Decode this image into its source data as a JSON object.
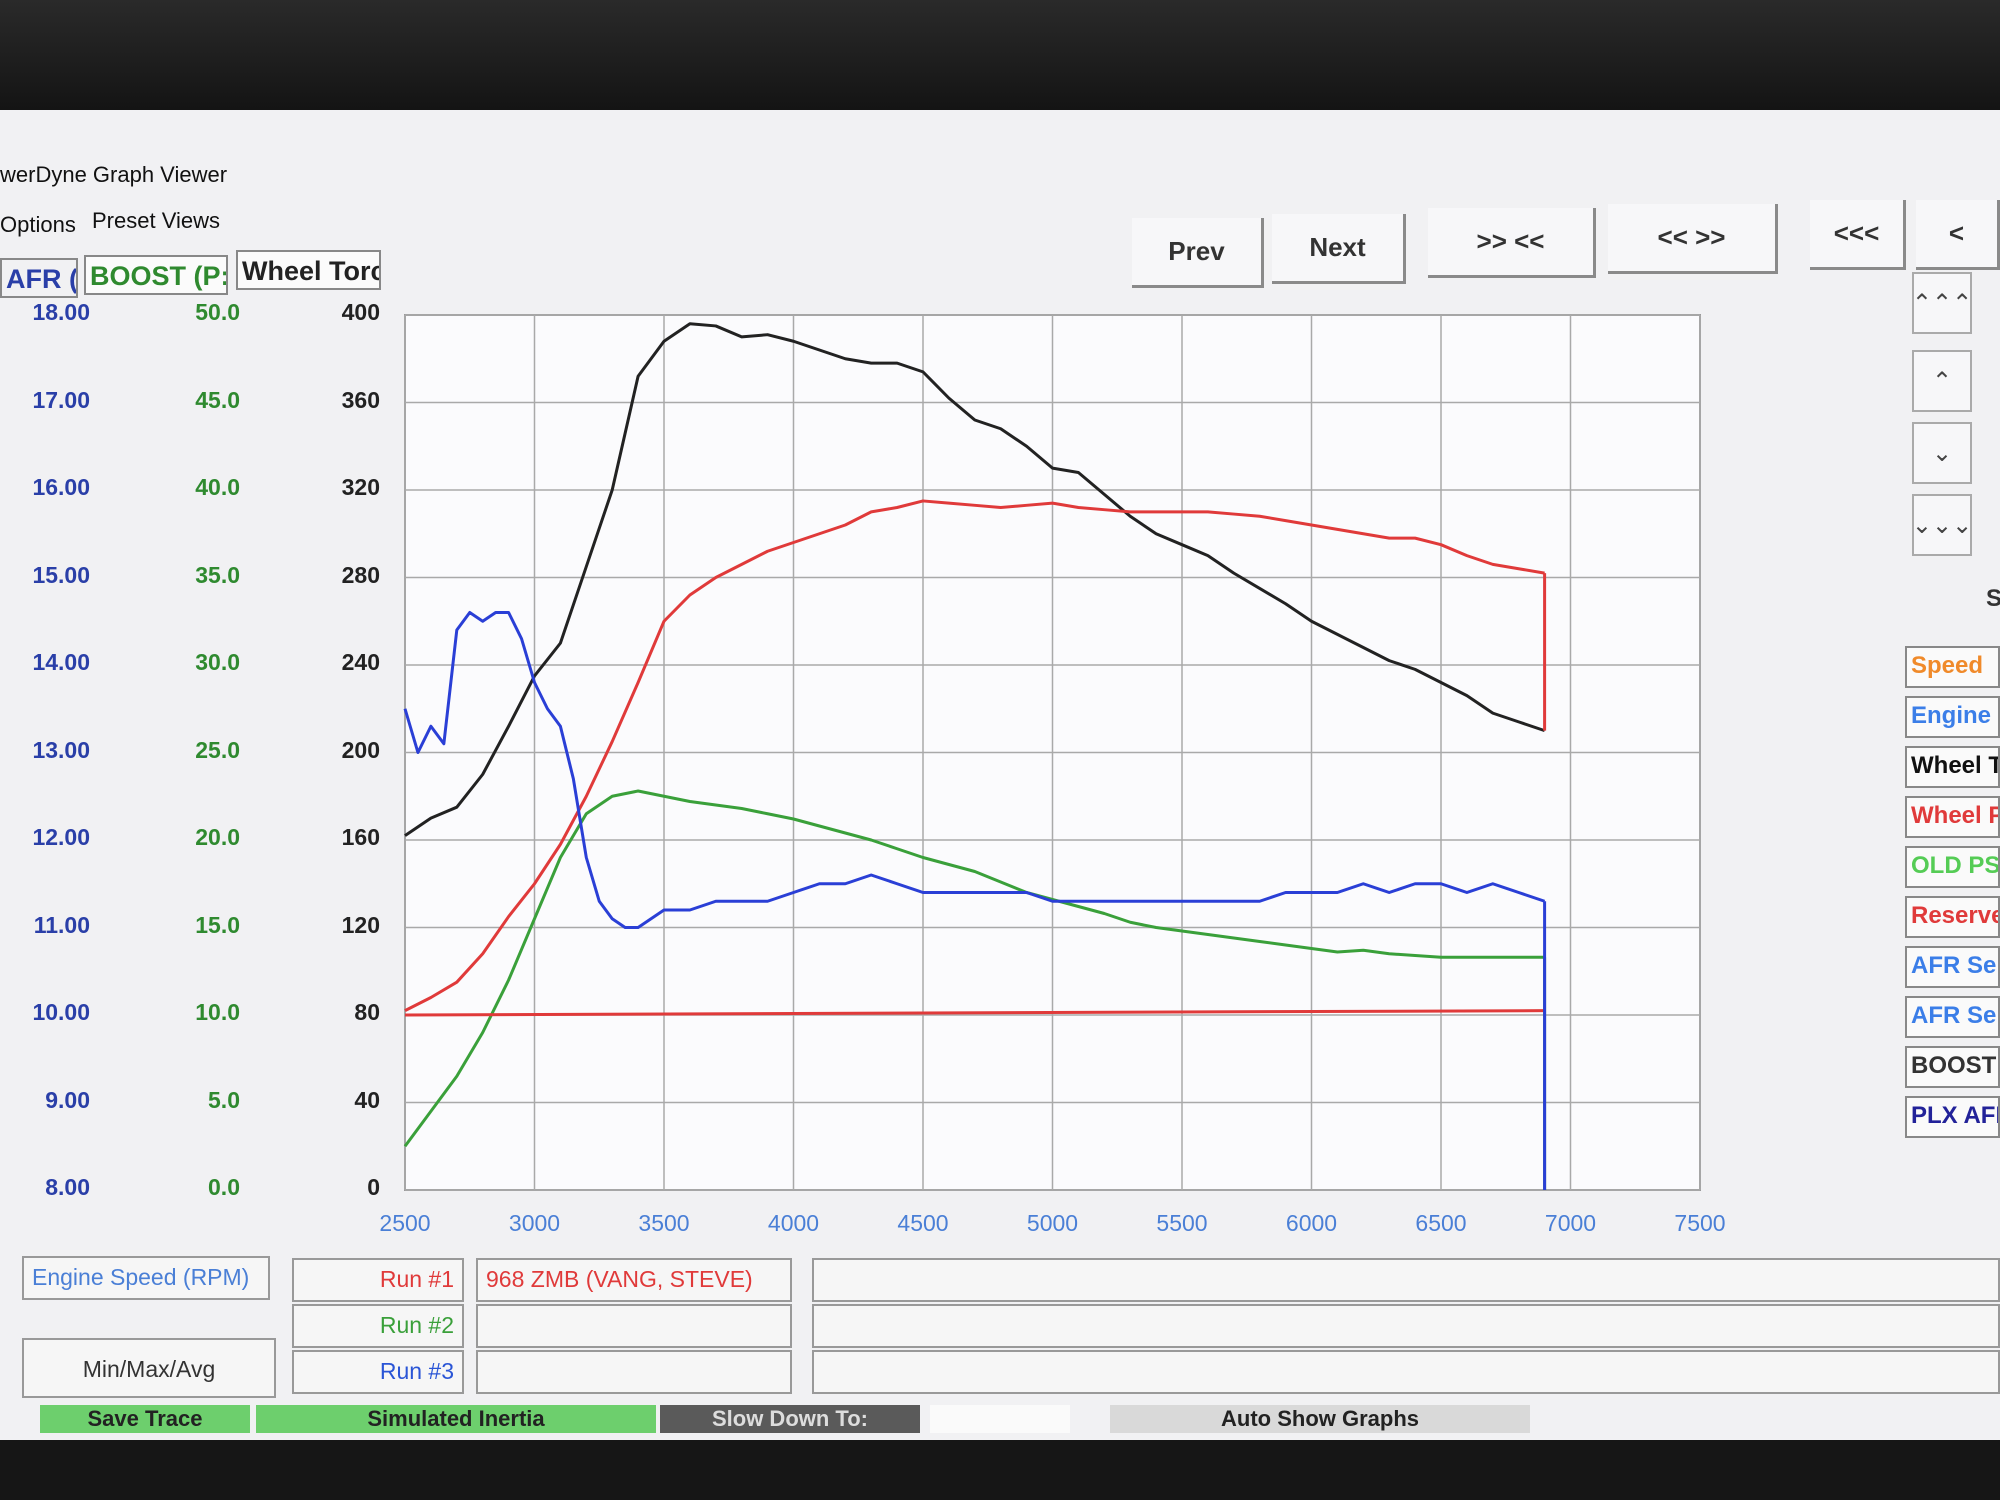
{
  "window": {
    "title": "werDyne Graph Viewer"
  },
  "menu": {
    "items": [
      "Options",
      "Preset Views"
    ]
  },
  "axis_headers": {
    "afr": "AFR (A",
    "boost": "BOOST (P:",
    "torque": "Wheel Torc"
  },
  "toolbar": {
    "prev": "Prev",
    "next": "Next",
    "zoom_in": ">> <<",
    "zoom_out": "<< >>",
    "far_left": "<<<",
    "left": "<"
  },
  "side_buttons": {
    "top": "⌃⌃⌃",
    "up": "⌃",
    "down": "⌄",
    "bottom": "⌄⌄⌄"
  },
  "side_letter": "S",
  "legend": [
    {
      "label": "Speed",
      "color": "#f08a2a"
    },
    {
      "label": "Engine",
      "color": "#3b7ee8"
    },
    {
      "label": "Wheel T",
      "color": "#111111"
    },
    {
      "label": "Wheel P",
      "color": "#e03a3a"
    },
    {
      "label": "OLD PS",
      "color": "#55cc55"
    },
    {
      "label": "Reserve",
      "color": "#e03a3a"
    },
    {
      "label": "AFR Sen",
      "color": "#3b7ee8"
    },
    {
      "label": "AFR Sen",
      "color": "#3b7ee8"
    },
    {
      "label": "BOOST",
      "color": "#333333"
    },
    {
      "label": "PLX AFR",
      "color": "#222299"
    }
  ],
  "bottom": {
    "x_axis_label": "Engine Speed (RPM)",
    "minmax_label": "Min/Max/Avg",
    "runs": [
      {
        "label": "Run #1",
        "name": "968 ZMB (VANG, STEVE)",
        "color": "#e03a3a"
      },
      {
        "label": "Run #2",
        "name": "",
        "color": "#3aa03a"
      },
      {
        "label": "Run #3",
        "name": "",
        "color": "#2a55d6"
      }
    ],
    "strip": {
      "save_trace": "Save Trace",
      "simulated_inertia": "Simulated Inertia",
      "slow_down": "Slow Down To:",
      "auto_show": "Auto Show Graphs"
    }
  },
  "chart_data": {
    "type": "line",
    "title": "",
    "xlabel": "Engine Speed (RPM)",
    "xlim": [
      2500,
      7500
    ],
    "x_ticks": [
      2500,
      3000,
      3500,
      4000,
      4500,
      5000,
      5500,
      6000,
      6500,
      7000,
      7500
    ],
    "grid": true,
    "y_axes": [
      {
        "name": "AFR (A",
        "ticks": [
          "18.00",
          "17.00",
          "16.00",
          "15.00",
          "14.00",
          "13.00",
          "12.00",
          "11.00",
          "10.00",
          "9.00",
          "8.00"
        ],
        "range": [
          8,
          18
        ],
        "color": "#2a3fa8"
      },
      {
        "name": "BOOST (P:",
        "ticks": [
          "50.0",
          "45.0",
          "40.0",
          "35.0",
          "30.0",
          "25.0",
          "20.0",
          "15.0",
          "10.0",
          "5.0",
          "0.0"
        ],
        "range": [
          0,
          50
        ],
        "color": "#2f8a2f"
      },
      {
        "name": "Wheel Torc",
        "ticks": [
          "400",
          "360",
          "320",
          "280",
          "240",
          "200",
          "160",
          "120",
          "80",
          "40",
          "0"
        ],
        "range": [
          0,
          400
        ],
        "color": "#222222"
      }
    ],
    "series": [
      {
        "color": "#222222",
        "axis": 2,
        "x": [
          2500,
          2600,
          2700,
          2800,
          2900,
          3000,
          3100,
          3200,
          3300,
          3400,
          3500,
          3600,
          3700,
          3800,
          3900,
          4000,
          4100,
          4200,
          4300,
          4400,
          4500,
          4600,
          4700,
          4800,
          4900,
          5000,
          5100,
          5200,
          5300,
          5400,
          5500,
          5600,
          5700,
          5800,
          5900,
          6000,
          6100,
          6200,
          6300,
          6400,
          6500,
          6600,
          6700,
          6800,
          6900
        ],
        "y": [
          162,
          170,
          175,
          190,
          212,
          235,
          250,
          285,
          320,
          372,
          388,
          396,
          395,
          390,
          391,
          388,
          384,
          380,
          378,
          378,
          374,
          362,
          352,
          348,
          340,
          330,
          328,
          318,
          308,
          300,
          295,
          290,
          282,
          275,
          268,
          260,
          254,
          248,
          242,
          238,
          232,
          226,
          218,
          214,
          210
        ]
      },
      {
        "color": "#e03a3a",
        "axis": 2,
        "x": [
          2500,
          2600,
          2700,
          2800,
          2900,
          3000,
          3100,
          3200,
          3300,
          3400,
          3500,
          3600,
          3700,
          3800,
          3900,
          4000,
          4100,
          4200,
          4300,
          4400,
          4500,
          4600,
          4700,
          4800,
          4900,
          5000,
          5100,
          5200,
          5300,
          5400,
          5500,
          5600,
          5700,
          5800,
          5900,
          6000,
          6100,
          6200,
          6300,
          6400,
          6500,
          6600,
          6700,
          6800,
          6900
        ],
        "y": [
          82,
          88,
          95,
          108,
          125,
          140,
          158,
          180,
          205,
          232,
          260,
          272,
          280,
          286,
          292,
          296,
          300,
          304,
          310,
          312,
          315,
          314,
          313,
          312,
          313,
          314,
          312,
          311,
          310,
          310,
          310,
          310,
          309,
          308,
          306,
          304,
          302,
          300,
          298,
          298,
          295,
          290,
          286,
          284,
          282
        ]
      },
      {
        "color": "#3aa03a",
        "axis": 1,
        "x": [
          2500,
          2600,
          2700,
          2800,
          2900,
          3000,
          3100,
          3200,
          3300,
          3400,
          3500,
          3600,
          3700,
          3800,
          3900,
          4000,
          4100,
          4200,
          4300,
          4400,
          4500,
          4600,
          4700,
          4800,
          4900,
          5000,
          5100,
          5200,
          5300,
          5400,
          5500,
          5600,
          5700,
          5800,
          5900,
          6000,
          6100,
          6200,
          6300,
          6400,
          6500,
          6600,
          6700,
          6800,
          6900
        ],
        "y": [
          2.5,
          4.5,
          6.5,
          9,
          12,
          15.5,
          19,
          21.5,
          22.5,
          22.8,
          22.5,
          22.2,
          22,
          21.8,
          21.5,
          21.2,
          20.8,
          20.4,
          20,
          19.5,
          19,
          18.6,
          18.2,
          17.6,
          17,
          16.6,
          16.2,
          15.8,
          15.3,
          15,
          14.8,
          14.6,
          14.4,
          14.2,
          14,
          13.8,
          13.6,
          13.7,
          13.5,
          13.4,
          13.3,
          13.3,
          13.3,
          13.3,
          13.3
        ]
      },
      {
        "color": "#2a3fd6",
        "axis": 0,
        "x": [
          2500,
          2550,
          2600,
          2650,
          2700,
          2750,
          2800,
          2850,
          2900,
          2950,
          3000,
          3050,
          3100,
          3150,
          3200,
          3250,
          3300,
          3350,
          3400,
          3450,
          3500,
          3600,
          3700,
          3800,
          3900,
          4000,
          4100,
          4200,
          4300,
          4400,
          4500,
          4600,
          4700,
          4800,
          4900,
          5000,
          5100,
          5200,
          5300,
          5400,
          5500,
          5600,
          5700,
          5800,
          5900,
          6000,
          6100,
          6200,
          6300,
          6400,
          6500,
          6600,
          6700,
          6800,
          6900
        ],
        "y": [
          13.5,
          13.0,
          13.3,
          13.1,
          14.4,
          14.6,
          14.5,
          14.6,
          14.6,
          14.3,
          13.8,
          13.5,
          13.3,
          12.7,
          11.8,
          11.3,
          11.1,
          11.0,
          11.0,
          11.1,
          11.2,
          11.2,
          11.3,
          11.3,
          11.3,
          11.4,
          11.5,
          11.5,
          11.6,
          11.5,
          11.4,
          11.4,
          11.4,
          11.4,
          11.4,
          11.3,
          11.3,
          11.3,
          11.3,
          11.3,
          11.3,
          11.3,
          11.3,
          11.3,
          11.4,
          11.4,
          11.4,
          11.5,
          11.4,
          11.5,
          11.5,
          11.4,
          11.5,
          11.4,
          11.3
        ]
      },
      {
        "color": "#e03a3a",
        "axis": 2,
        "x": [
          2500,
          6900
        ],
        "y": [
          80,
          82
        ]
      }
    ]
  }
}
